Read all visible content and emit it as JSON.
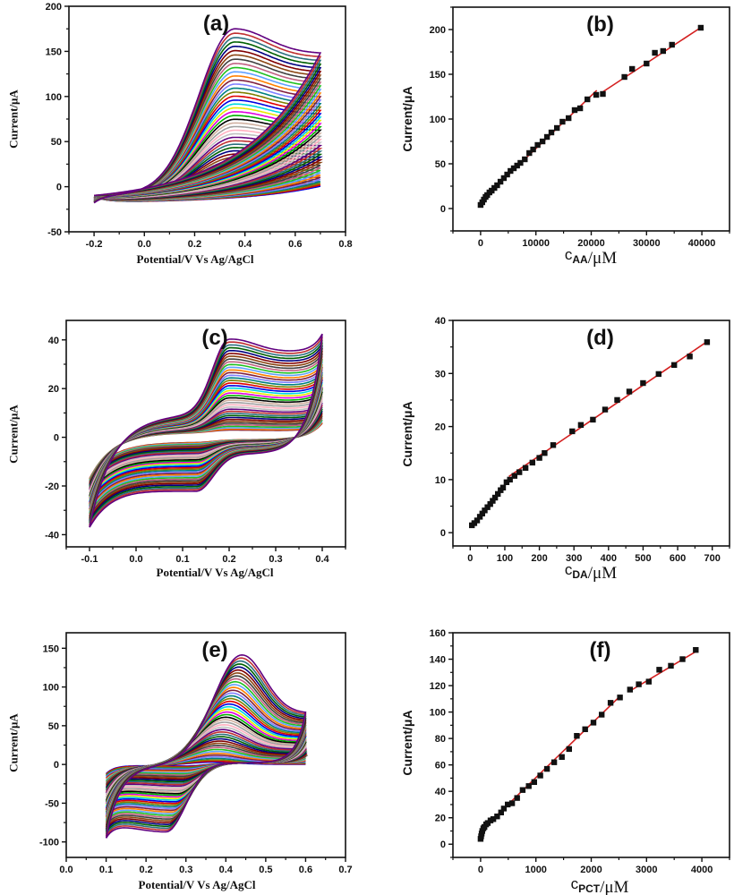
{
  "chart_data": [
    {
      "panel": "(a)",
      "type": "line",
      "xlabel": "Potential/V Vs Ag/AgCl",
      "ylabel": "Current/μA",
      "xlim": [
        -0.3,
        0.8
      ],
      "ylim": [
        -50,
        200
      ],
      "xticks": [
        -0.2,
        0.0,
        0.2,
        0.4,
        0.6,
        0.8
      ],
      "xtick_labels": [
        "-0.2",
        "0.0",
        "0.2",
        "0.4",
        "0.6",
        "0.8"
      ],
      "yticks": [
        -50,
        0,
        50,
        100,
        150,
        200
      ],
      "ytick_labels": [
        "-50",
        "0",
        "50",
        "100",
        "150",
        "200"
      ],
      "grid": false,
      "curves": {
        "count": 45,
        "potential_range": [
          -0.2,
          0.7
        ],
        "anodic_peak_potential": 0.36,
        "anodic_peak_current_range": [
          10,
          183
        ]
      }
    },
    {
      "panel": "(b)",
      "type": "scatter",
      "xlabel_parts": {
        "symbol": "c",
        "subscript": "AA",
        "unit": "/μM"
      },
      "ylabel": "Current/μA",
      "xlim": [
        -5000,
        45000
      ],
      "ylim": [
        -25,
        225
      ],
      "xticks": [
        0,
        10000,
        20000,
        30000,
        40000
      ],
      "xtick_labels": [
        "0",
        "10000",
        "20000",
        "30000",
        "40000"
      ],
      "yticks": [
        0,
        50,
        100,
        150,
        200
      ],
      "ytick_labels": [
        "0",
        "50",
        "100",
        "150",
        "200"
      ],
      "grid": false,
      "x": [
        0,
        300,
        600,
        900,
        1200,
        1600,
        2000,
        2500,
        3000,
        3600,
        4200,
        4800,
        5400,
        6000,
        6600,
        7200,
        8000,
        8800,
        9500,
        10300,
        11200,
        12000,
        12800,
        13800,
        14800,
        15900,
        17000,
        18000,
        19300,
        20900,
        22100,
        26000,
        27400,
        30000,
        31500,
        33000,
        34600,
        39800
      ],
      "y": [
        4,
        7,
        10,
        13,
        15,
        18,
        20,
        23,
        26,
        30,
        34,
        38,
        42,
        45,
        48,
        51,
        55,
        62,
        66,
        71,
        75,
        80,
        85,
        90,
        97,
        101,
        110,
        112,
        122,
        127,
        128,
        147,
        156,
        162,
        174,
        176,
        183,
        202
      ],
      "fits": [
        {
          "x": [
            0,
            21000
          ],
          "y": [
            8,
            132
          ]
        },
        {
          "x": [
            22000,
            40000
          ],
          "y": [
            130,
            203
          ]
        }
      ]
    },
    {
      "panel": "(c)",
      "type": "line",
      "xlabel": "Potential/V Vs Ag/AgCl",
      "ylabel": "Current/μA",
      "xlim": [
        -0.15,
        0.45
      ],
      "ylim": [
        -45,
        48
      ],
      "xticks": [
        -0.1,
        0.0,
        0.1,
        0.2,
        0.3,
        0.4
      ],
      "xtick_labels": [
        "-0.1",
        "0.0",
        "0.1",
        "0.2",
        "0.3",
        "0.4"
      ],
      "yticks": [
        -40,
        -20,
        0,
        20,
        40
      ],
      "ytick_labels": [
        "-40",
        "-20",
        "0",
        "20",
        "40"
      ],
      "grid": false,
      "curves": {
        "count": 40,
        "potential_range": [
          -0.1,
          0.4
        ],
        "anodic_peak_potential": 0.2,
        "anodic_peak_current_range": [
          1,
          40
        ]
      }
    },
    {
      "panel": "(d)",
      "type": "scatter",
      "xlabel_parts": {
        "symbol": "c",
        "subscript": "DA",
        "unit": "/μM"
      },
      "ylabel": "Current/μA",
      "xlim": [
        -50,
        750
      ],
      "ylim": [
        -2.5,
        40
      ],
      "xticks": [
        0,
        100,
        200,
        300,
        400,
        500,
        600,
        700
      ],
      "xtick_labels": [
        "0",
        "100",
        "200",
        "300",
        "400",
        "500",
        "600",
        "700"
      ],
      "yticks": [
        0,
        10,
        20,
        30,
        40
      ],
      "ytick_labels": [
        "0",
        "10",
        "20",
        "30",
        "40"
      ],
      "grid": false,
      "x": [
        5,
        12,
        20,
        28,
        35,
        42,
        50,
        58,
        65,
        72,
        80,
        88,
        95,
        105,
        115,
        128,
        142,
        160,
        180,
        200,
        215,
        240,
        295,
        320,
        355,
        390,
        425,
        460,
        500,
        545,
        590,
        635,
        685
      ],
      "y": [
        1.4,
        1.8,
        2.3,
        3,
        3.6,
        4.2,
        4.8,
        5.4,
        6,
        6.6,
        7.3,
        8,
        8.5,
        9.5,
        10,
        10.7,
        11.4,
        12.2,
        13.2,
        14.1,
        15,
        16.5,
        19.1,
        20.3,
        21.3,
        23.2,
        25,
        26.6,
        28.2,
        29.9,
        31.6,
        33.2,
        35.9
      ],
      "fits": [
        {
          "x": [
            5,
            112
          ],
          "y": [
            1.2,
            10
          ]
        },
        {
          "x": [
            112,
            685
          ],
          "y": [
            10.6,
            36
          ]
        }
      ]
    },
    {
      "panel": "(e)",
      "type": "line",
      "xlabel": "Potential/V Vs Ag/AgCl",
      "ylabel": "Current/μA",
      "xlim": [
        0.0,
        0.7
      ],
      "ylim": [
        -120,
        170
      ],
      "xticks": [
        0.0,
        0.1,
        0.2,
        0.3,
        0.4,
        0.5,
        0.6,
        0.7
      ],
      "xtick_labels": [
        "0.0",
        "0.1",
        "0.2",
        "0.3",
        "0.4",
        "0.5",
        "0.6",
        "0.7"
      ],
      "yticks": [
        -100,
        -50,
        0,
        50,
        100,
        150
      ],
      "ytick_labels": [
        "-100",
        "-50",
        "0",
        "50",
        "100",
        "150"
      ],
      "grid": false,
      "curves": {
        "count": 45,
        "potential_range": [
          0.1,
          0.6
        ],
        "anodic_peak_potential": 0.44,
        "anodic_peak_current_range": [
          5,
          146
        ]
      }
    },
    {
      "panel": "(f)",
      "type": "scatter",
      "xlabel_parts": {
        "symbol": "c",
        "subscript": "PCT",
        "unit": "/μM"
      },
      "ylabel": "Current/μA",
      "xlim": [
        -500,
        4500
      ],
      "ylim": [
        -10,
        160
      ],
      "xticks": [
        0,
        1000,
        2000,
        3000,
        4000
      ],
      "xtick_labels": [
        "0",
        "1000",
        "2000",
        "3000",
        "4000"
      ],
      "yticks": [
        0,
        20,
        40,
        60,
        80,
        100,
        120,
        140,
        160
      ],
      "ytick_labels": [
        "0",
        "20",
        "40",
        "60",
        "80",
        "100",
        "120",
        "140",
        "160"
      ],
      "grid": false,
      "x": [
        0,
        10,
        20,
        30,
        50,
        70,
        100,
        130,
        180,
        230,
        300,
        370,
        420,
        490,
        570,
        660,
        760,
        870,
        970,
        1080,
        1200,
        1330,
        1470,
        1600,
        1740,
        1890,
        2040,
        2190,
        2350,
        2520,
        2700,
        2860,
        3040,
        3230,
        3440,
        3650,
        3890
      ],
      "y": [
        4,
        6,
        8,
        10,
        12,
        13,
        15,
        16,
        18,
        19,
        21,
        24,
        27,
        30,
        31,
        35,
        41,
        44,
        47,
        52,
        57,
        62,
        66,
        72,
        82,
        87,
        92,
        98,
        107,
        111,
        117,
        121,
        123,
        132,
        135,
        140,
        147
      ],
      "fits": [
        {
          "x": [
            0,
            30,
            100
          ],
          "y": [
            4,
            10,
            14
          ]
        },
        {
          "x": [
            100,
            2520
          ],
          "y": [
            14,
            112
          ]
        },
        {
          "x": [
            2700,
            3900
          ],
          "y": [
            116,
            146
          ]
        }
      ]
    }
  ],
  "colors": {
    "marker": "#111111",
    "fit_line": "#d42020",
    "cv_palette": [
      "#c0c0c0",
      "#ffb0c0",
      "#a0a0a0",
      "#d0b0a0",
      "#000000",
      "#00b000",
      "#e000e0",
      "#e8e800",
      "#00d8e0",
      "#0000e0",
      "#e00000",
      "#808000",
      "#008080",
      "#8080ff",
      "#802040",
      "#ff8000",
      "#60a0ff",
      "#20c020",
      "#c06080",
      "#404040",
      "#8b4513",
      "#800000",
      "#000080",
      "#006000",
      "#2a6f7f",
      "#c03030",
      "#600080"
    ]
  }
}
